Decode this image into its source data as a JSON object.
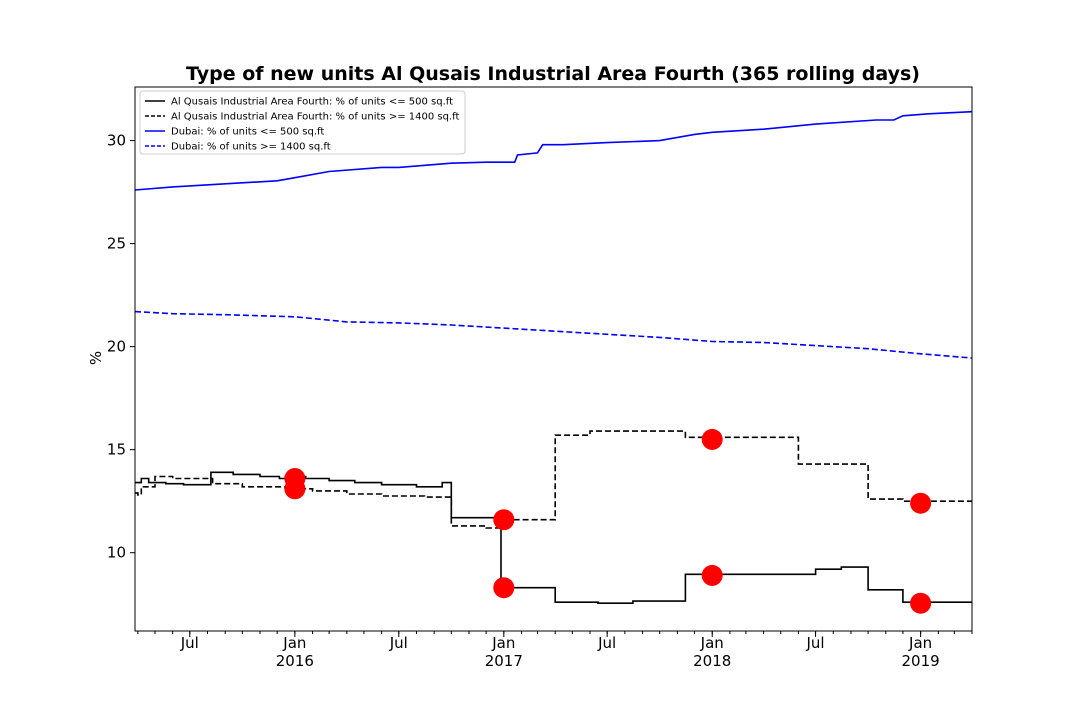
{
  "chart_data": {
    "type": "line",
    "title": "Type of new units Al Qusais Industrial Area Fourth (365 rolling days)",
    "xlabel": "",
    "ylabel": "%",
    "xlim": [
      "2015-03-27",
      "2019-04-01"
    ],
    "ylim": [
      6.2,
      32.6
    ],
    "y_ticks": [
      10,
      15,
      20,
      25,
      30
    ],
    "x_ticks": [
      {
        "date": "2015-07-01",
        "label": "Jul",
        "sublabel": ""
      },
      {
        "date": "2016-01-01",
        "label": "Jan",
        "sublabel": "2016"
      },
      {
        "date": "2016-07-01",
        "label": "Jul",
        "sublabel": ""
      },
      {
        "date": "2017-01-01",
        "label": "Jan",
        "sublabel": "2017"
      },
      {
        "date": "2017-07-01",
        "label": "Jul",
        "sublabel": ""
      },
      {
        "date": "2018-01-01",
        "label": "Jan",
        "sublabel": "2018"
      },
      {
        "date": "2018-07-01",
        "label": "Jul",
        "sublabel": ""
      },
      {
        "date": "2019-01-01",
        "label": "Jan",
        "sublabel": "2019"
      }
    ],
    "grid": false,
    "legend_position": "top-left",
    "series": [
      {
        "name": "Al Qusais Industrial Area Fourth: % of units <= 500 sq.ft",
        "color": "#000000",
        "dash": "solid",
        "step": true,
        "points": [
          [
            "2015-03-27",
            13.4
          ],
          [
            "2015-04-07",
            13.6
          ],
          [
            "2015-04-20",
            13.4
          ],
          [
            "2015-05-20",
            13.35
          ],
          [
            "2015-06-20",
            13.3
          ],
          [
            "2015-08-07",
            13.9
          ],
          [
            "2015-09-15",
            13.8
          ],
          [
            "2015-11-01",
            13.7
          ],
          [
            "2015-12-05",
            13.6
          ],
          [
            "2015-12-15",
            13.7
          ],
          [
            "2016-01-20",
            13.6
          ],
          [
            "2016-03-01",
            13.5
          ],
          [
            "2016-04-15",
            13.4
          ],
          [
            "2016-06-01",
            13.3
          ],
          [
            "2016-08-01",
            13.2
          ],
          [
            "2016-09-15",
            13.4
          ],
          [
            "2016-10-01",
            11.7
          ],
          [
            "2016-12-01",
            11.7
          ],
          [
            "2016-12-27",
            8.3
          ],
          [
            "2017-04-01",
            7.6
          ],
          [
            "2017-06-15",
            7.55
          ],
          [
            "2017-08-15",
            7.65
          ],
          [
            "2017-11-15",
            8.95
          ],
          [
            "2018-06-01",
            8.95
          ],
          [
            "2018-07-01",
            9.2
          ],
          [
            "2018-08-15",
            9.3
          ],
          [
            "2018-10-01",
            8.2
          ],
          [
            "2018-12-01",
            7.6
          ],
          [
            "2019-04-01",
            7.6
          ]
        ]
      },
      {
        "name": "Al Qusais Industrial Area Fourth: % of units >= 1400 sq.ft",
        "color": "#000000",
        "dash": "dashed",
        "step": true,
        "points": [
          [
            "2015-03-27",
            12.9
          ],
          [
            "2015-04-01",
            12.8
          ],
          [
            "2015-04-07",
            13.2
          ],
          [
            "2015-05-01",
            13.7
          ],
          [
            "2015-06-01",
            13.6
          ],
          [
            "2015-07-15",
            13.6
          ],
          [
            "2015-08-10",
            13.35
          ],
          [
            "2015-10-01",
            13.2
          ],
          [
            "2015-12-15",
            13.1
          ],
          [
            "2016-02-01",
            13.0
          ],
          [
            "2016-04-01",
            12.85
          ],
          [
            "2016-06-01",
            12.75
          ],
          [
            "2016-08-15",
            12.7
          ],
          [
            "2016-10-01",
            11.3
          ],
          [
            "2016-12-01",
            11.2
          ],
          [
            "2016-12-27",
            11.6
          ],
          [
            "2017-04-01",
            15.7
          ],
          [
            "2017-06-01",
            15.9
          ],
          [
            "2017-11-15",
            15.6
          ],
          [
            "2018-06-01",
            14.3
          ],
          [
            "2018-10-01",
            12.6
          ],
          [
            "2018-12-01",
            12.5
          ],
          [
            "2019-04-01",
            12.5
          ]
        ]
      },
      {
        "name": "Dubai: % of units <= 500 sq.ft",
        "color": "#0000ff",
        "dash": "solid",
        "step": false,
        "points": [
          [
            "2015-03-27",
            27.6
          ],
          [
            "2015-06-01",
            27.75
          ],
          [
            "2015-09-01",
            27.9
          ],
          [
            "2015-12-01",
            28.05
          ],
          [
            "2016-01-01",
            28.2
          ],
          [
            "2016-03-01",
            28.5
          ],
          [
            "2016-06-01",
            28.7
          ],
          [
            "2016-07-01",
            28.7
          ],
          [
            "2016-10-01",
            28.9
          ],
          [
            "2016-12-01",
            28.95
          ],
          [
            "2017-01-20",
            28.95
          ],
          [
            "2017-01-25",
            29.3
          ],
          [
            "2017-03-01",
            29.4
          ],
          [
            "2017-03-10",
            29.8
          ],
          [
            "2017-04-15",
            29.8
          ],
          [
            "2017-07-01",
            29.9
          ],
          [
            "2017-10-01",
            30.0
          ],
          [
            "2017-12-01",
            30.3
          ],
          [
            "2018-01-01",
            30.4
          ],
          [
            "2018-04-01",
            30.55
          ],
          [
            "2018-07-01",
            30.8
          ],
          [
            "2018-10-15",
            31.0
          ],
          [
            "2018-11-15",
            31.0
          ],
          [
            "2018-12-01",
            31.2
          ],
          [
            "2019-01-15",
            31.3
          ],
          [
            "2019-04-01",
            31.4
          ]
        ]
      },
      {
        "name": "Dubai: % of units >= 1400 sq.ft",
        "color": "#0000ff",
        "dash": "dashed",
        "step": false,
        "points": [
          [
            "2015-03-27",
            21.7
          ],
          [
            "2015-06-01",
            21.6
          ],
          [
            "2015-09-01",
            21.55
          ],
          [
            "2016-01-01",
            21.45
          ],
          [
            "2016-04-01",
            21.2
          ],
          [
            "2016-07-01",
            21.15
          ],
          [
            "2016-10-01",
            21.05
          ],
          [
            "2017-01-01",
            20.9
          ],
          [
            "2017-04-01",
            20.75
          ],
          [
            "2017-07-01",
            20.6
          ],
          [
            "2017-10-01",
            20.45
          ],
          [
            "2018-01-01",
            20.25
          ],
          [
            "2018-04-01",
            20.2
          ],
          [
            "2018-07-01",
            20.05
          ],
          [
            "2018-10-01",
            19.9
          ],
          [
            "2019-01-01",
            19.65
          ],
          [
            "2019-04-01",
            19.45
          ]
        ]
      }
    ],
    "markers": {
      "color": "#ff0000",
      "points": [
        [
          "2016-01-01",
          13.6
        ],
        [
          "2016-01-01",
          13.1
        ],
        [
          "2017-01-01",
          11.6
        ],
        [
          "2017-01-01",
          8.3
        ],
        [
          "2018-01-01",
          15.5
        ],
        [
          "2018-01-01",
          8.9
        ],
        [
          "2019-01-01",
          12.4
        ],
        [
          "2019-01-01",
          7.55
        ]
      ]
    }
  }
}
